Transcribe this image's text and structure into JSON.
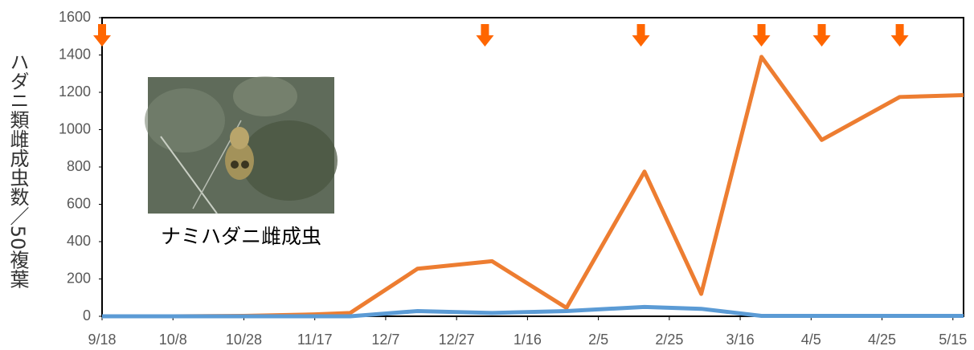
{
  "chart_data": {
    "type": "line",
    "y_label": "ハダニ類雌成虫数／50複葉",
    "photo_caption": "ナミハダニ雌成虫",
    "x": [
      0,
      20,
      40,
      60,
      70,
      89,
      110,
      131,
      153,
      169,
      186,
      203,
      225,
      243
    ],
    "series": [
      {
        "color": "#ED7D31",
        "values": [
          0,
          0,
          2,
          10,
          18,
          255,
          295,
          45,
          775,
          120,
          1390,
          945,
          1175,
          1185
        ]
      },
      {
        "color": "#5B9BD5",
        "values": [
          0,
          0,
          0,
          0,
          0,
          28,
          18,
          28,
          50,
          40,
          2,
          2,
          2,
          2
        ]
      }
    ],
    "arrow_x": [
      0,
      108,
      152,
      186,
      203,
      225
    ],
    "arrow_color": "#FF6600",
    "xlim": [
      0,
      243
    ],
    "xticks": [
      {
        "value": 0,
        "label": "9/18"
      },
      {
        "value": 20,
        "label": "10/8"
      },
      {
        "value": 40,
        "label": "10/28"
      },
      {
        "value": 60,
        "label": "11/17"
      },
      {
        "value": 80,
        "label": "12/7"
      },
      {
        "value": 100,
        "label": "12/27"
      },
      {
        "value": 120,
        "label": "1/16"
      },
      {
        "value": 140,
        "label": "2/5"
      },
      {
        "value": 160,
        "label": "2/25"
      },
      {
        "value": 180,
        "label": "3/16"
      },
      {
        "value": 200,
        "label": "4/5"
      },
      {
        "value": 220,
        "label": "4/25"
      },
      {
        "value": 240,
        "label": "5/15"
      }
    ],
    "ylim": [
      0,
      1600
    ],
    "yticks": [
      0,
      200,
      400,
      600,
      800,
      1000,
      1200,
      1400,
      1600
    ],
    "grid": false
  }
}
